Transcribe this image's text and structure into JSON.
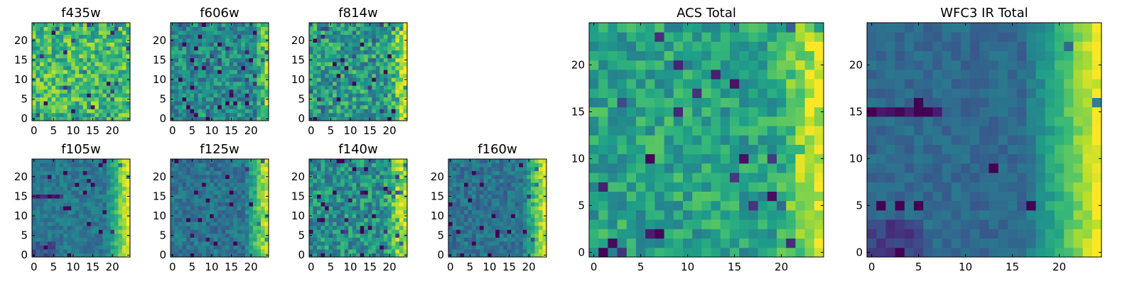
{
  "chart_data": {
    "type": "heatmap",
    "colormap": "viridis",
    "grid_size": 25,
    "value_range": [
      0,
      1
    ],
    "panels": [
      {
        "key": "f435w",
        "title": "f435w",
        "xticks": [
          "0",
          "5",
          "10",
          "15",
          "20"
        ],
        "yticks": [
          "0",
          "5",
          "10",
          "15",
          "20"
        ],
        "pattern": {
          "base": 0.68,
          "edge_peak": 0.0,
          "edge_width": 5,
          "noise": 0.22,
          "dark_rate": 0.05,
          "dark_band_row": -1,
          "seed": 11
        }
      },
      {
        "key": "f606w",
        "title": "f606w",
        "xticks": [
          "0",
          "5",
          "10",
          "15",
          "20"
        ],
        "yticks": [
          "0",
          "5",
          "10",
          "15",
          "20"
        ],
        "pattern": {
          "base": 0.48,
          "edge_peak": 0.32,
          "edge_width": 3,
          "noise": 0.2,
          "dark_rate": 0.05,
          "dark_band_row": -1,
          "seed": 23
        }
      },
      {
        "key": "f814w",
        "title": "f814w",
        "xticks": [
          "0",
          "5",
          "10",
          "15",
          "20"
        ],
        "yticks": [
          "0",
          "5",
          "10",
          "15",
          "20"
        ],
        "pattern": {
          "base": 0.55,
          "edge_peak": 0.4,
          "edge_width": 4,
          "noise": 0.22,
          "dark_rate": 0.05,
          "dark_band_row": -1,
          "seed": 37
        }
      },
      {
        "key": "f105w",
        "title": "f105w",
        "xticks": [
          "0",
          "5",
          "10",
          "15",
          "20"
        ],
        "yticks": [
          "0",
          "5",
          "10",
          "15",
          "20"
        ],
        "pattern": {
          "base": 0.4,
          "edge_peak": 0.55,
          "edge_width": 6,
          "noise": 0.1,
          "dark_rate": 0.03,
          "dark_band_row": 15,
          "seed": 41
        }
      },
      {
        "key": "f125w",
        "title": "f125w",
        "xticks": [
          "0",
          "5",
          "10",
          "15",
          "20"
        ],
        "yticks": [
          "0",
          "5",
          "10",
          "15",
          "20"
        ],
        "pattern": {
          "base": 0.38,
          "edge_peak": 0.55,
          "edge_width": 6,
          "noise": 0.12,
          "dark_rate": 0.04,
          "dark_band_row": -1,
          "seed": 53
        }
      },
      {
        "key": "f140w",
        "title": "f140w",
        "xticks": [
          "0",
          "5",
          "10",
          "15",
          "20"
        ],
        "yticks": [
          "0",
          "5",
          "10",
          "15",
          "20"
        ],
        "pattern": {
          "base": 0.5,
          "edge_peak": 0.4,
          "edge_width": 6,
          "noise": 0.2,
          "dark_rate": 0.04,
          "dark_band_row": -1,
          "seed": 67
        }
      },
      {
        "key": "f160w",
        "title": "f160w",
        "xticks": [
          "0",
          "5",
          "10",
          "15",
          "20"
        ],
        "yticks": [
          "0",
          "5",
          "10",
          "15",
          "20"
        ],
        "pattern": {
          "base": 0.38,
          "edge_peak": 0.55,
          "edge_width": 6,
          "noise": 0.12,
          "dark_rate": 0.04,
          "dark_band_row": -1,
          "seed": 79
        }
      },
      {
        "key": "acs_total",
        "title": "ACS Total",
        "xticks": [
          "0",
          "5",
          "10",
          "15",
          "20"
        ],
        "yticks": [
          "0",
          "5",
          "10",
          "15",
          "20"
        ],
        "pattern": {
          "base": 0.58,
          "edge_peak": 0.38,
          "edge_width": 5,
          "noise": 0.16,
          "dark_rate": 0.04,
          "dark_band_row": -1,
          "seed": 91
        }
      },
      {
        "key": "wfc3_ir_total",
        "title": "WFC3 IR Total",
        "xticks": [
          "0",
          "5",
          "10",
          "15",
          "20"
        ],
        "yticks": [
          "0",
          "5",
          "10",
          "15",
          "20"
        ],
        "pattern": {
          "base": 0.34,
          "edge_peak": 0.62,
          "edge_width": 8,
          "noise": 0.07,
          "dark_rate": 0.02,
          "dark_band_row": 15,
          "seed": 103
        }
      }
    ]
  }
}
